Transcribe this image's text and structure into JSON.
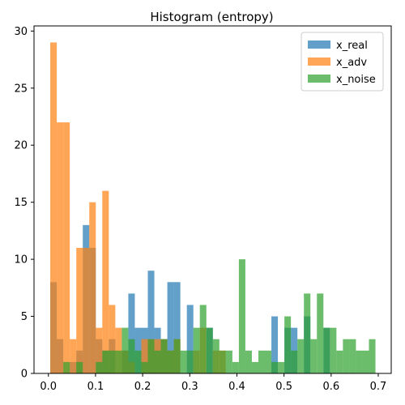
{
  "chart_data": {
    "type": "histogram",
    "title": "Histogram (entropy)",
    "xlabel": "",
    "ylabel": "",
    "xlim": [
      -0.0305,
      0.7275
    ],
    "ylim": [
      0,
      30.45
    ],
    "x_ticks": [
      0.0,
      0.1,
      0.2,
      0.3,
      0.4,
      0.5,
      0.6,
      0.7
    ],
    "x_tick_labels": [
      "0.0",
      "0.1",
      "0.2",
      "0.3",
      "0.4",
      "0.5",
      "0.6",
      "0.7"
    ],
    "y_ticks": [
      0,
      5,
      10,
      15,
      20,
      25,
      30
    ],
    "y_tick_labels": [
      "0",
      "5",
      "10",
      "15",
      "20",
      "25",
      "30"
    ],
    "bins": {
      "start": 0.004,
      "width": 0.0138,
      "count": 50
    },
    "alpha": 0.7,
    "legend_position": "top-right",
    "series": [
      {
        "name": "x_real",
        "color": "#1f77b4",
        "counts": [
          8,
          3,
          0,
          1,
          2,
          13,
          11,
          3,
          2,
          3,
          0,
          2,
          7,
          4,
          4,
          9,
          4,
          3,
          8,
          8,
          0,
          6,
          0,
          0,
          4,
          0,
          0,
          0,
          0,
          0,
          0,
          0,
          0,
          0,
          5,
          0,
          4,
          4,
          0,
          5,
          0,
          0,
          4,
          0,
          0,
          0,
          0,
          0,
          0,
          0
        ]
      },
      {
        "name": "x_adv",
        "color": "#ff7f0e",
        "counts": [
          29,
          22,
          22,
          3,
          11,
          11,
          15,
          4,
          16,
          6,
          4,
          2,
          1,
          0,
          3,
          3,
          3,
          3,
          2,
          3,
          0,
          0,
          2,
          4,
          0,
          2,
          2,
          0,
          0,
          0,
          0,
          0,
          0,
          0,
          0,
          0,
          0,
          0,
          0,
          0,
          0,
          0,
          0,
          0,
          0,
          0,
          0,
          0,
          0,
          0
        ]
      },
      {
        "name": "x_noise",
        "color": "#2ca02c",
        "counts": [
          0,
          0,
          1,
          0,
          1,
          0,
          0,
          1,
          2,
          2,
          2,
          4,
          3,
          2,
          1,
          3,
          2,
          3,
          2,
          3,
          2,
          2,
          4,
          6,
          4,
          3,
          2,
          2,
          1,
          10,
          2,
          1,
          2,
          2,
          1,
          1,
          5,
          2,
          3,
          7,
          3,
          7,
          4,
          4,
          2,
          3,
          3,
          2,
          2,
          3
        ]
      }
    ]
  }
}
